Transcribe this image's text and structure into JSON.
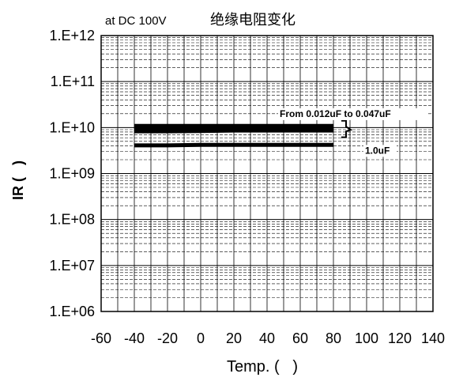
{
  "chart_data": {
    "type": "line",
    "title": "绝缘电阻变化",
    "subtitle": "at DC 100V",
    "xlabel": "Temp. (   )",
    "ylabel": "IR (   )",
    "x_ticks": [
      -60,
      -40,
      -20,
      0,
      20,
      40,
      60,
      80,
      100,
      120,
      140
    ],
    "x_tick_labels": [
      "-60",
      "-40",
      "-20",
      "0",
      "20",
      "40",
      "60",
      "80",
      "100",
      "120",
      "140"
    ],
    "xlim": [
      -60,
      140
    ],
    "y_scale": "log",
    "ylim": [
      1000000.0,
      1000000000000.0
    ],
    "y_tick_labels": [
      "1.E+12",
      "1.E+11",
      "1.E+10",
      "1.E+09",
      "1.E+08",
      "1.E+07",
      "1.E+06"
    ],
    "y_tick_values": [
      1000000000000.0,
      100000000000.0,
      10000000000.0,
      1000000000.0,
      100000000.0,
      10000000.0,
      1000000.0
    ],
    "grid": true,
    "series": [
      {
        "name": "From 0.012uF to 0.047uF",
        "band": true,
        "x": [
          -40,
          -20,
          0,
          20,
          40,
          60,
          80
        ],
        "y_low": [
          7500000000.0,
          7500000000.0,
          7600000000.0,
          7800000000.0,
          7800000000.0,
          7800000000.0,
          7800000000.0
        ],
        "y_high": [
          12000000000.0,
          12000000000.0,
          12000000000.0,
          12000000000.0,
          12000000000.0,
          12000000000.0,
          12000000000.0
        ]
      },
      {
        "name": "1.0uF",
        "x": [
          -40,
          -20,
          0,
          20,
          40,
          60,
          80
        ],
        "y": [
          4100000000.0,
          4100000000.0,
          4200000000.0,
          4200000000.0,
          4200000000.0,
          4200000000.0,
          4200000000.0
        ]
      }
    ]
  }
}
